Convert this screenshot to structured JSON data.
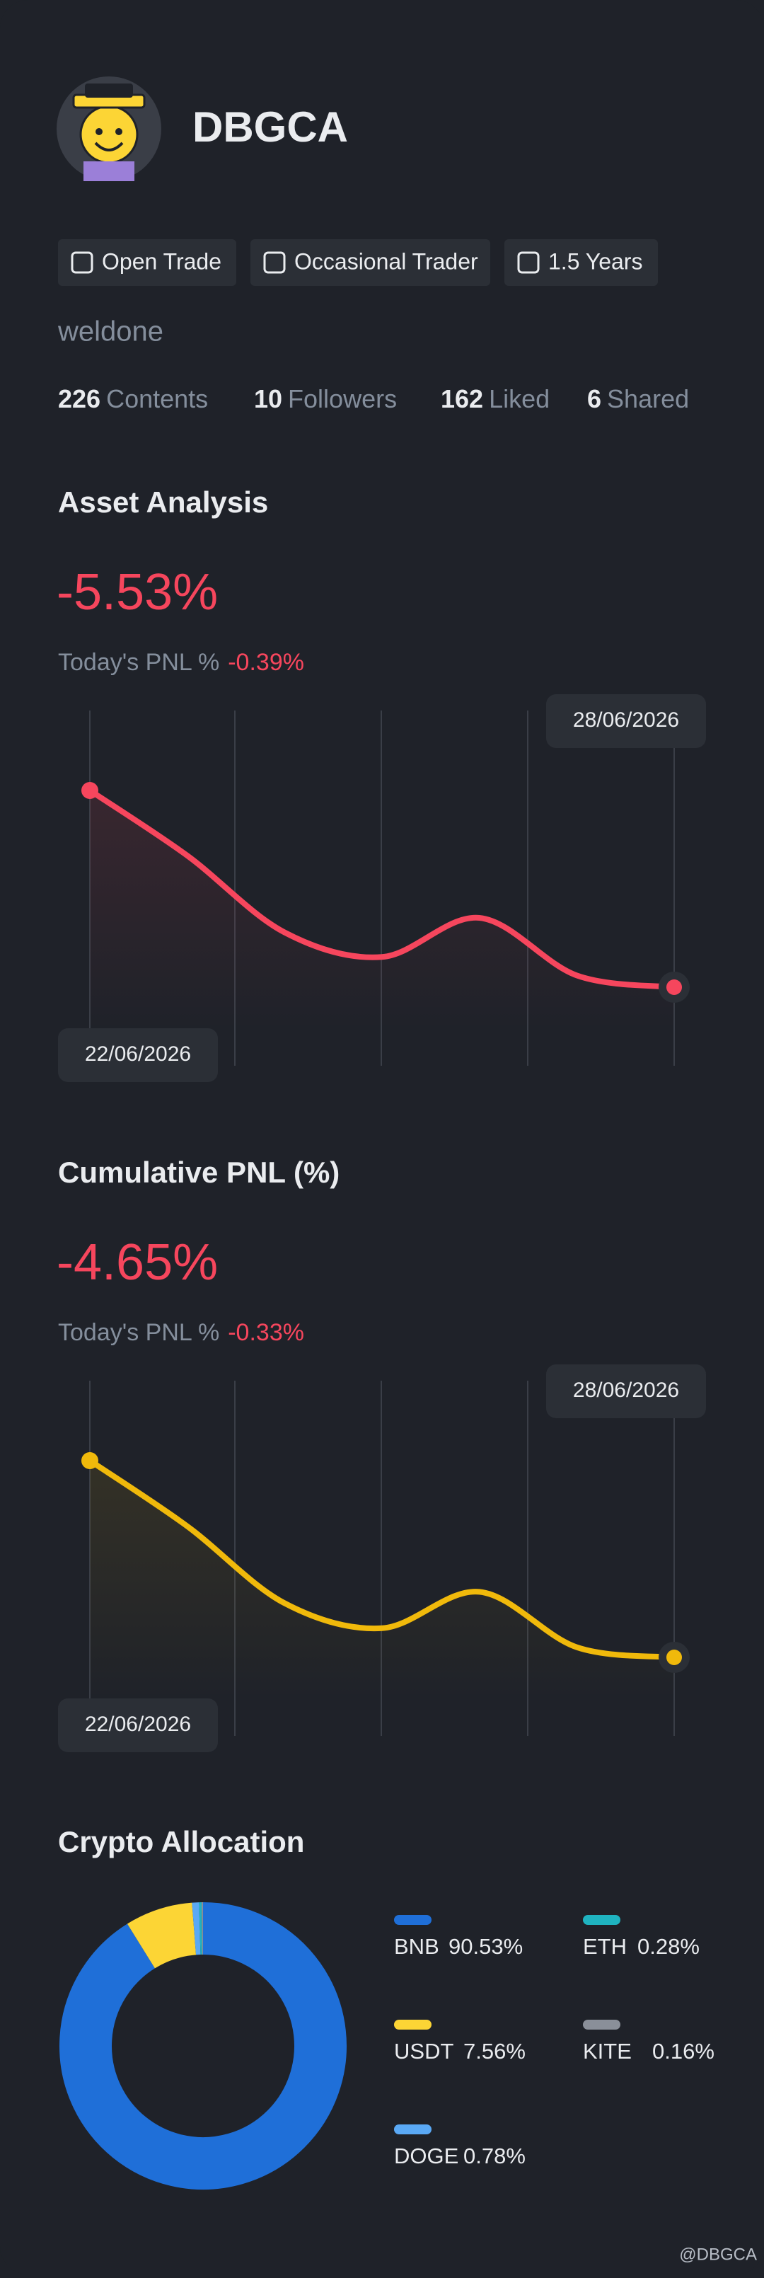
{
  "profile": {
    "name": "DBGCA",
    "tags": [
      "Open Trade",
      "Occasional Trader",
      "1.5 Years"
    ],
    "bio": "weldone",
    "stats": [
      {
        "value": 226,
        "label": "Contents"
      },
      {
        "value": 10,
        "label": "Followers"
      },
      {
        "value": 162,
        "label": "Liked"
      },
      {
        "value": 6,
        "label": "Shared"
      }
    ]
  },
  "chart_data": [
    {
      "type": "line",
      "title": "Asset Analysis",
      "headline": "-5.53%",
      "today_label": "Today's PNL %",
      "today_value": "-0.39%",
      "categories": [
        "22/06/2026",
        null,
        null,
        null,
        null,
        null,
        "28/06/2026"
      ],
      "values": [
        0,
        -1.83,
        -3.99,
        -4.68,
        -3.58,
        -5.2,
        -5.53
      ],
      "color": "#f6465d"
    },
    {
      "type": "line",
      "title": "Cumulative PNL (%)",
      "headline": "-4.65%",
      "today_label": "Today's PNL %",
      "today_value": "-0.33%",
      "categories": [
        "22/06/2026",
        null,
        null,
        null,
        null,
        null,
        "28/06/2026"
      ],
      "values": [
        0,
        -1.55,
        -3.37,
        -3.96,
        -3.1,
        -4.41,
        -4.65
      ],
      "color": "#f0b90b"
    },
    {
      "type": "pie",
      "title": "Crypto Allocation",
      "categories": [
        "BNB",
        "USDT",
        "DOGE",
        "ETH",
        "KITE"
      ],
      "values": [
        90.53,
        7.56,
        0.78,
        0.28,
        0.16
      ],
      "value_labels": [
        "90.53%",
        "7.56%",
        "0.78%",
        "0.28%",
        "0.16%"
      ],
      "colors": [
        "#1f6fd8",
        "#fcd535",
        "#5aa9f5",
        "#1fb3c0",
        "#8a8f99"
      ]
    }
  ],
  "watermark": "@DBGCA"
}
